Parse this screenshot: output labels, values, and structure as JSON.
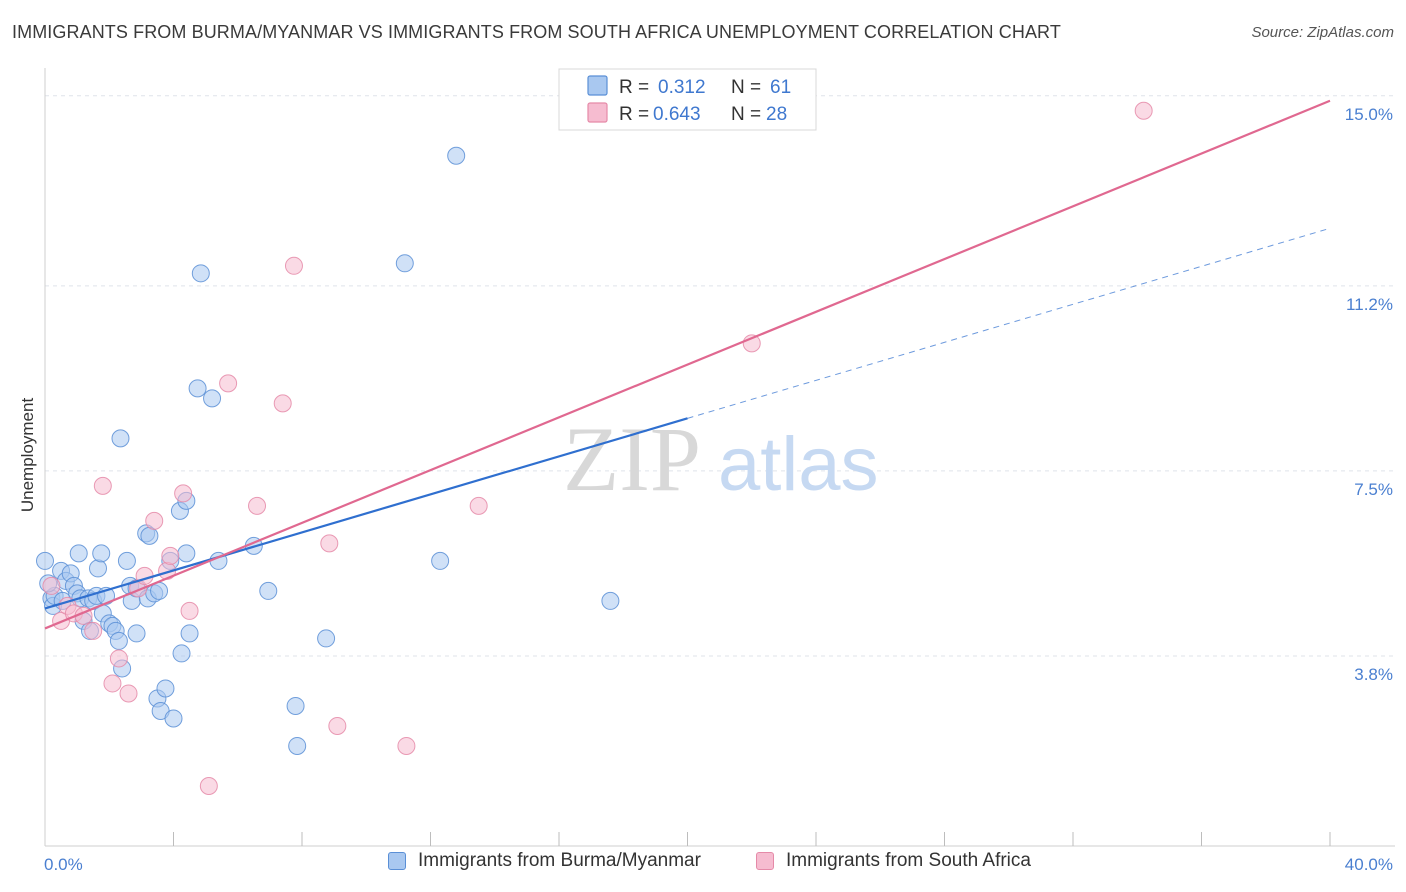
{
  "title": "IMMIGRANTS FROM BURMA/MYANMAR VS IMMIGRANTS FROM SOUTH AFRICA UNEMPLOYMENT CORRELATION CHART",
  "source": "Source: ZipAtlas.com",
  "watermark": {
    "zip": "ZIP",
    "atlas": "atlas"
  },
  "colors": {
    "burma_fill": "#a9c8f0",
    "burma_stroke": "#5a8fd6",
    "burma_line": "#2f6fcf",
    "sa_fill": "#f6bcd0",
    "sa_stroke": "#e58aa8",
    "sa_line": "#e06890",
    "tick_label": "#4a7fd0",
    "grid": "#dfe3ea"
  },
  "legend": {
    "r_label": "R =",
    "n_label": "N =",
    "rows": [
      {
        "series": "burma",
        "r": "0.312",
        "n": "61"
      },
      {
        "series": "south_africa",
        "r": "0.643",
        "n": "28"
      }
    ]
  },
  "chart_data": {
    "type": "scatter",
    "title": "IMMIGRANTS FROM BURMA/MYANMAR VS IMMIGRANTS FROM SOUTH AFRICA UNEMPLOYMENT CORRELATION CHART",
    "xlabel": "",
    "ylabel": "Unemployment",
    "xlim": [
      0,
      40
    ],
    "ylim": [
      0,
      15.375
    ],
    "x_tick_labels": [
      "0.0%",
      "40.0%"
    ],
    "y_ticks": [
      3.8,
      7.5,
      11.2,
      15.0
    ],
    "y_tick_labels": [
      "3.8%",
      "7.5%",
      "11.2%",
      "15.0%"
    ],
    "grid": true,
    "legend_position": "top-center",
    "series": [
      {
        "name": "Immigrants from Burma/Myanmar",
        "color": "#a9c8f0",
        "points": [
          [
            0.0,
            5.7
          ],
          [
            0.2,
            4.95
          ],
          [
            0.25,
            4.8
          ],
          [
            0.3,
            5.0
          ],
          [
            0.5,
            5.5
          ],
          [
            0.55,
            4.9
          ],
          [
            0.65,
            5.3
          ],
          [
            0.8,
            5.45
          ],
          [
            0.9,
            5.2
          ],
          [
            1.0,
            5.05
          ],
          [
            1.1,
            4.95
          ],
          [
            1.05,
            5.85
          ],
          [
            1.2,
            4.5
          ],
          [
            1.35,
            4.95
          ],
          [
            1.4,
            4.3
          ],
          [
            1.5,
            4.9
          ],
          [
            1.6,
            5.0
          ],
          [
            1.65,
            5.55
          ],
          [
            1.75,
            5.85
          ],
          [
            1.8,
            4.65
          ],
          [
            1.9,
            5.0
          ],
          [
            2.0,
            4.45
          ],
          [
            2.1,
            4.4
          ],
          [
            2.2,
            4.3
          ],
          [
            2.3,
            4.1
          ],
          [
            2.35,
            8.15
          ],
          [
            2.4,
            3.55
          ],
          [
            2.55,
            5.7
          ],
          [
            2.65,
            5.2
          ],
          [
            2.7,
            4.9
          ],
          [
            2.85,
            5.15
          ],
          [
            2.85,
            4.25
          ],
          [
            3.15,
            6.25
          ],
          [
            3.2,
            4.95
          ],
          [
            3.25,
            6.2
          ],
          [
            3.4,
            5.05
          ],
          [
            3.5,
            2.95
          ],
          [
            3.55,
            5.1
          ],
          [
            3.6,
            2.7
          ],
          [
            3.75,
            3.15
          ],
          [
            3.9,
            5.7
          ],
          [
            4.0,
            2.55
          ],
          [
            4.2,
            6.7
          ],
          [
            4.25,
            3.85
          ],
          [
            4.4,
            6.9
          ],
          [
            4.4,
            5.85
          ],
          [
            4.5,
            4.25
          ],
          [
            4.75,
            9.15
          ],
          [
            4.85,
            11.45
          ],
          [
            5.2,
            8.95
          ],
          [
            5.4,
            5.7
          ],
          [
            6.5,
            6.0
          ],
          [
            6.95,
            5.1
          ],
          [
            7.8,
            2.8
          ],
          [
            7.85,
            2.0
          ],
          [
            8.75,
            4.15
          ],
          [
            11.2,
            11.65
          ],
          [
            12.3,
            5.7
          ],
          [
            12.8,
            13.8
          ],
          [
            17.6,
            4.9
          ],
          [
            0.1,
            5.25
          ]
        ]
      },
      {
        "name": "Immigrants from South Africa",
        "color": "#f6bcd0",
        "points": [
          [
            0.2,
            5.2
          ],
          [
            0.5,
            4.5
          ],
          [
            0.7,
            4.8
          ],
          [
            0.9,
            4.65
          ],
          [
            1.2,
            4.6
          ],
          [
            1.5,
            4.3
          ],
          [
            1.8,
            7.2
          ],
          [
            2.1,
            3.25
          ],
          [
            2.3,
            3.75
          ],
          [
            2.6,
            3.05
          ],
          [
            2.9,
            5.15
          ],
          [
            3.1,
            5.4
          ],
          [
            3.4,
            6.5
          ],
          [
            3.8,
            5.5
          ],
          [
            3.9,
            5.8
          ],
          [
            4.3,
            7.05
          ],
          [
            4.5,
            4.7
          ],
          [
            5.1,
            1.2
          ],
          [
            5.7,
            9.25
          ],
          [
            6.6,
            6.8
          ],
          [
            7.4,
            8.85
          ],
          [
            7.75,
            11.6
          ],
          [
            8.85,
            6.05
          ],
          [
            9.1,
            2.4
          ],
          [
            11.25,
            2.0
          ],
          [
            13.5,
            6.8
          ],
          [
            22.0,
            10.05
          ],
          [
            34.2,
            14.7
          ]
        ]
      }
    ],
    "trend_lines": [
      {
        "series": "Immigrants from Burma/Myanmar",
        "x": [
          0,
          20
        ],
        "y": [
          4.75,
          8.55
        ],
        "style": "solid"
      },
      {
        "series": "Immigrants from Burma/Myanmar",
        "x": [
          20,
          40
        ],
        "y": [
          8.55,
          12.35
        ],
        "style": "dashed"
      },
      {
        "series": "Immigrants from South Africa",
        "x": [
          0,
          40
        ],
        "y": [
          4.35,
          14.9
        ],
        "style": "solid"
      }
    ]
  }
}
